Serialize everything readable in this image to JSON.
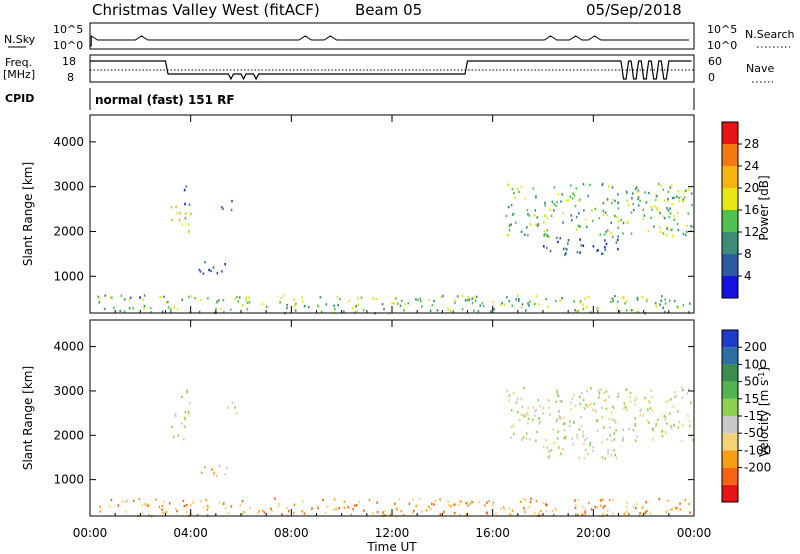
{
  "header": {
    "station": "Christmas Valley West (fitACF)",
    "beam": "Beam 05",
    "date": "05/Sep/2018"
  },
  "strip_labels": {
    "nsky": "N.Sky",
    "nsearch": "N.Search",
    "freq_line1": "Freq.",
    "freq_line2": "[MHz]",
    "nave": "Nave",
    "cpid": "CPID",
    "cpid_value": "normal (fast) 151 RF"
  },
  "strip_ticks": {
    "nsky_left": [
      "10^5",
      "10^0"
    ],
    "nsky_right": [
      "10^5",
      "10^0"
    ],
    "freq_left": [
      "18",
      "8"
    ],
    "nave_right": [
      "60",
      "0"
    ]
  },
  "colors": {
    "power": [
      "#1414dc",
      "#2d5aa0",
      "#3c8c78",
      "#50c050",
      "#e6e614",
      "#f5b414",
      "#f57814",
      "#e61414"
    ],
    "velocity": [
      "#e61414",
      "#f56414",
      "#f5a014",
      "#f5d278",
      "#c8c8c8",
      "#8cd250",
      "#50b450",
      "#3c8c50",
      "#2d6ea0",
      "#1e3cc8"
    ]
  },
  "chart_data": [
    {
      "type": "heatmap",
      "name": "power",
      "ylabel": "Slant Range [km]",
      "yticks": [
        1000,
        2000,
        3000,
        4000
      ],
      "ylim": [
        180,
        4600
      ],
      "xlim_hours": [
        0,
        24
      ],
      "colorbar_label": "Power [dB]",
      "colorbar_ticks": [
        "4",
        "8",
        "12",
        "16",
        "20",
        "24",
        "28"
      ],
      "colorbar_range": [
        0,
        32
      ],
      "echo_regions": [
        {
          "t0": 0.3,
          "t1": 23.9,
          "r0": 200,
          "r1": 600,
          "level": 3
        },
        {
          "t0": 1.5,
          "t1": 2.2,
          "r0": 520,
          "r1": 650,
          "level": 1
        },
        {
          "t0": 3.2,
          "t1": 4.0,
          "r0": 1900,
          "r1": 2600,
          "level": 4
        },
        {
          "t0": 3.6,
          "t1": 3.95,
          "r0": 2600,
          "r1": 3100,
          "level": 1
        },
        {
          "t0": 4.3,
          "t1": 5.6,
          "r0": 1050,
          "r1": 1350,
          "level": 1
        },
        {
          "t0": 5.2,
          "t1": 5.8,
          "r0": 2500,
          "r1": 2800,
          "level": 1
        },
        {
          "t0": 16.5,
          "t1": 24.0,
          "r0": 1900,
          "r1": 3100,
          "level": 3
        },
        {
          "t0": 18.0,
          "t1": 21.0,
          "r0": 1500,
          "r1": 1900,
          "level": 1
        }
      ]
    },
    {
      "type": "heatmap",
      "name": "velocity",
      "ylabel": "Slant Range [km]",
      "yticks": [
        1000,
        2000,
        3000,
        4000
      ],
      "ylim": [
        180,
        4600
      ],
      "xlim_hours": [
        0,
        24
      ],
      "xticks": [
        "00:00",
        "04:00",
        "08:00",
        "12:00",
        "16:00",
        "20:00",
        "00:00"
      ],
      "xlabel": "Time UT",
      "colorbar_label": "Velocity [m s^-1]",
      "colorbar_ticks": [
        "200",
        "100",
        "50",
        "15",
        "-15",
        "-50",
        "-100",
        "-200"
      ],
      "echo_regions": [
        {
          "t0": 0.3,
          "t1": 23.9,
          "r0": 200,
          "r1": 600,
          "level": 2
        },
        {
          "t0": 1.5,
          "t1": 2.2,
          "r0": 520,
          "r1": 650,
          "level": 2
        },
        {
          "t0": 3.2,
          "t1": 4.0,
          "r0": 1900,
          "r1": 2600,
          "level": 4
        },
        {
          "t0": 3.6,
          "t1": 3.95,
          "r0": 2600,
          "r1": 3100,
          "level": 4
        },
        {
          "t0": 4.3,
          "t1": 5.6,
          "r0": 1050,
          "r1": 1350,
          "level": 3
        },
        {
          "t0": 5.2,
          "t1": 5.8,
          "r0": 2500,
          "r1": 2800,
          "level": 4
        },
        {
          "t0": 16.5,
          "t1": 24.0,
          "r0": 1900,
          "r1": 3100,
          "level": 4
        },
        {
          "t0": 18.0,
          "t1": 21.0,
          "r0": 1500,
          "r1": 1900,
          "level": 4
        }
      ]
    }
  ]
}
